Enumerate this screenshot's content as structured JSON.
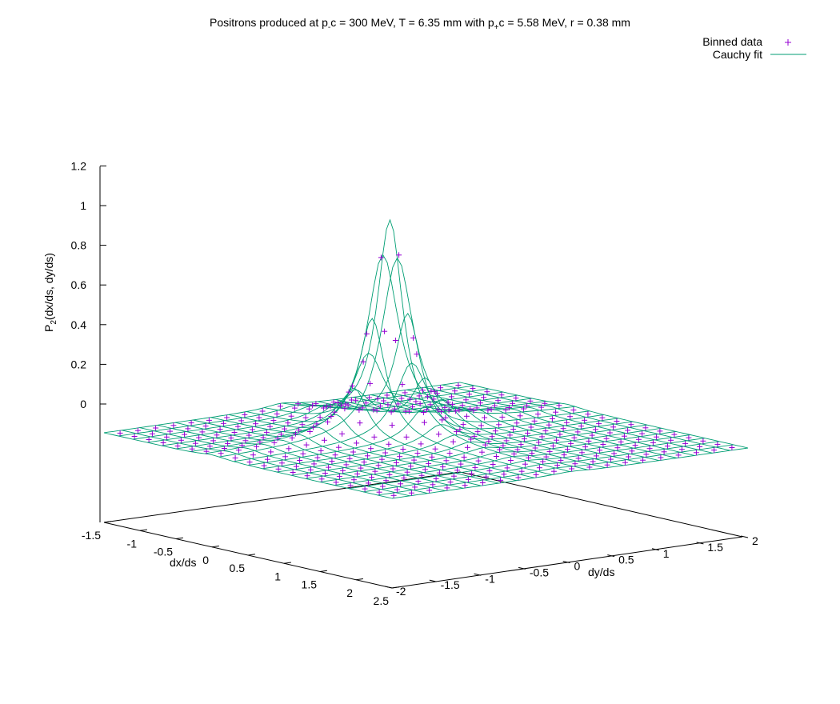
{
  "chart_data": {
    "type": "surface3d",
    "title_parts": {
      "a": "Positrons produced at p",
      "sub1": "-",
      "b": "c = 300 MeV, T = 6.35 mm with p",
      "sub2": "+",
      "c": "c = 5.58 MeV, r = 0.38 mm"
    },
    "xlabel": "dx/ds",
    "ylabel": "dy/ds",
    "zlabel_parts": {
      "a": "P",
      "sub": "2",
      "b": "(dx/ds, dy/ds)"
    },
    "x_ticks": [
      "-1.5",
      "-1",
      "-0.5",
      "0",
      "0.5",
      "1",
      "1.5",
      "2",
      "2.5"
    ],
    "y_ticks": [
      "-2",
      "-1.5",
      "-1",
      "-0.5",
      "0",
      "0.5",
      "1",
      "1.5",
      "2"
    ],
    "z_ticks": [
      "0",
      "0.2",
      "0.4",
      "0.6",
      "0.8",
      "1",
      "1.2"
    ],
    "xlim": [
      -1.5,
      2.5
    ],
    "ylim": [
      -2,
      2
    ],
    "zlim": [
      0,
      1.2
    ],
    "legend": [
      {
        "label": "Binned data",
        "style": "points",
        "color": "#9400d3"
      },
      {
        "label": "Cauchy fit",
        "style": "lines",
        "color": "#009e73"
      }
    ],
    "legend_position": "top-right",
    "fit": {
      "model": "cauchy",
      "peak": 1.07,
      "x0": 0.0,
      "y0": 0.0,
      "gamma_x": 0.22,
      "gamma_y": 0.22
    },
    "grid": {
      "x_min": -1.5,
      "x_max": 2.5,
      "x_step": 0.2,
      "y_min": -2.0,
      "y_max": 2.0,
      "y_step": 0.2
    }
  }
}
